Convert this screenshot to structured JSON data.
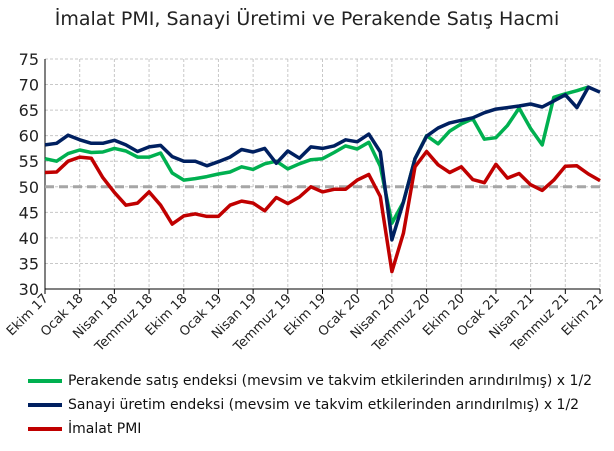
{
  "chart_data": {
    "type": "line",
    "title": "İmalat PMI, Sanayi Üretimi ve Perakende Satış Hacmi",
    "xlabel": "",
    "ylabel": "",
    "ylim": [
      30,
      75
    ],
    "yticks": [
      30,
      35,
      40,
      45,
      50,
      55,
      60,
      65,
      70,
      75
    ],
    "x_tick_labels": [
      "Ekim 17",
      "Ocak 18",
      "Nisan 18",
      "Temmuz 18",
      "Ekim 18",
      "Ocak 19",
      "Nisan 19",
      "Temmuz 19",
      "Ekim 19",
      "Ocak 20",
      "Nisan 20",
      "Temmuz 20",
      "Ekim 20",
      "Ocak 21",
      "Nisan 21",
      "Temmuz 21",
      "Ekim 21"
    ],
    "x_range_months": [
      "2017-10",
      "2021-10"
    ],
    "grid": true,
    "reference_line": 50,
    "legend_position": "bottom",
    "series": [
      {
        "name": "Perakende satış endeksi (mevsim ve takvim etkilerinden arındırılmış) x 1/2",
        "color": "#00b050",
        "values": [
          55.5,
          55.0,
          56.5,
          57.2,
          56.7,
          56.8,
          57.5,
          57.0,
          55.8,
          55.8,
          56.6,
          52.7,
          51.3,
          51.6,
          52.0,
          52.5,
          52.9,
          53.9,
          53.4,
          54.5,
          55.0,
          53.5,
          54.5,
          55.3,
          55.5,
          56.7,
          58.0,
          57.4,
          58.7,
          54.0,
          42.9,
          47.0,
          55.5,
          60.0,
          58.4,
          60.9,
          62.3,
          63.3,
          59.3,
          59.6,
          62.0,
          65.4,
          61.4,
          58.2,
          67.5,
          68.2,
          68.8,
          69.5
        ]
      },
      {
        "name": "Sanayi üretim endeksi (mevsim ve takvim etkilerinden arındırılmış) x 1/2",
        "color": "#002060",
        "values": [
          58.2,
          58.5,
          60.1,
          59.2,
          58.5,
          58.5,
          59.1,
          58.2,
          56.9,
          57.8,
          58.1,
          55.9,
          55.0,
          55.0,
          54.1,
          54.9,
          55.8,
          57.3,
          56.8,
          57.5,
          54.6,
          57.0,
          55.6,
          57.8,
          57.5,
          58.0,
          59.2,
          58.8,
          60.3,
          56.8,
          39.6,
          47.0,
          55.5,
          59.9,
          61.5,
          62.5,
          63.0,
          63.5,
          64.5,
          65.2,
          65.5,
          65.8,
          66.2,
          65.6,
          66.8,
          68.0,
          65.5,
          69.5,
          68.5
        ]
      },
      {
        "name": "İmalat PMI",
        "color": "#c00000",
        "values": [
          52.8,
          52.9,
          55.0,
          55.8,
          55.6,
          51.8,
          48.9,
          46.4,
          46.8,
          49.0,
          46.4,
          42.7,
          44.3,
          44.7,
          44.2,
          44.2,
          46.4,
          47.2,
          46.8,
          45.3,
          47.9,
          46.7,
          48.0,
          50.0,
          49.0,
          49.5,
          49.5,
          51.3,
          52.4,
          48.1,
          33.4,
          40.9,
          53.9,
          56.9,
          54.3,
          52.8,
          53.9,
          51.4,
          50.8,
          54.4,
          51.7,
          52.6,
          50.4,
          49.3,
          51.3,
          54.0,
          54.1,
          52.5,
          51.2
        ]
      }
    ]
  }
}
